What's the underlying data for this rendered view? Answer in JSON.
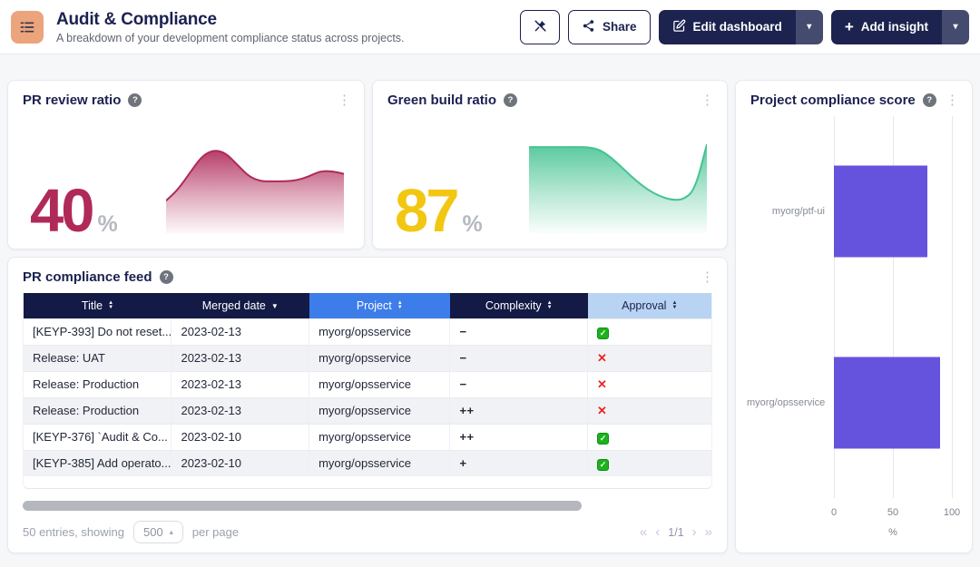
{
  "header": {
    "title": "Audit & Compliance",
    "subtitle": "A breakdown of your development compliance status across projects.",
    "share_label": "Share",
    "edit_label": "Edit dashboard",
    "add_label": "Add insight"
  },
  "icons": {
    "caret_down": "▾",
    "select_caret": "▴",
    "kebab": "⋮",
    "help": "?",
    "plus": "+",
    "sort_asc": "▲",
    "sort_desc": "▼",
    "check": "✓",
    "cross": "✕",
    "pag_first": "«",
    "pag_prev": "‹",
    "pag_next": "›",
    "pag_last": "»"
  },
  "colors": {
    "navy": "#1b2150",
    "crimson": "#b02a59",
    "yellow": "#f2c712",
    "green": "#45c392",
    "purple": "#6553dd",
    "header_blue": "#3d7de9",
    "header_light_blue": "#b9d4f2"
  },
  "cards": {
    "pr_review": {
      "title": "PR review ratio",
      "value": "40",
      "unit": "%"
    },
    "green_build": {
      "title": "Green build ratio",
      "value": "87",
      "unit": "%"
    },
    "score": {
      "title": "Project compliance score"
    },
    "feed": {
      "title": "PR compliance feed"
    }
  },
  "chart_data": [
    {
      "name": "pr-review-ratio",
      "type": "area",
      "title": "PR review ratio",
      "color": "#b02a59",
      "ylim": [
        0,
        100
      ],
      "displayed_value": 40,
      "unit": "%",
      "values": [
        36,
        48,
        66,
        84,
        91,
        88,
        75,
        62,
        57,
        57,
        57,
        58,
        62,
        68,
        68,
        65
      ]
    },
    {
      "name": "green-build-ratio",
      "type": "area",
      "title": "Green build ratio",
      "color": "#45c392",
      "ylim": [
        0,
        100
      ],
      "displayed_value": 87,
      "unit": "%",
      "values": [
        94,
        94,
        94,
        94,
        94,
        94,
        91,
        82,
        70,
        58,
        48,
        41,
        37,
        37,
        48,
        97
      ]
    },
    {
      "name": "project-compliance-score",
      "type": "bar",
      "title": "Project compliance score",
      "color": "#6553dd",
      "xlim": [
        0,
        100
      ],
      "xlabel": "%",
      "categories": [
        "myorg/ptf-ui",
        "myorg/opsservice"
      ],
      "values": [
        79,
        90
      ],
      "ticks": [
        "0",
        "50",
        "100"
      ]
    }
  ],
  "table": {
    "columns": [
      {
        "label": "Title",
        "sort": "both",
        "variant": "navy"
      },
      {
        "label": "Merged date",
        "sort": "desc",
        "variant": "navy"
      },
      {
        "label": "Project",
        "sort": "both",
        "variant": "blue"
      },
      {
        "label": "Complexity",
        "sort": "both",
        "variant": "navy"
      },
      {
        "label": "Approval",
        "sort": "both",
        "variant": "light"
      }
    ],
    "rows": [
      {
        "title": "[KEYP-393] Do not reset...",
        "date": "2023-02-13",
        "project": "myorg/opsservice",
        "complexity": "−",
        "approval": "pass"
      },
      {
        "title": "Release: UAT",
        "date": "2023-02-13",
        "project": "myorg/opsservice",
        "complexity": "−",
        "approval": "fail"
      },
      {
        "title": "Release: Production",
        "date": "2023-02-13",
        "project": "myorg/opsservice",
        "complexity": "−",
        "approval": "fail"
      },
      {
        "title": "Release: Production",
        "date": "2023-02-13",
        "project": "myorg/opsservice",
        "complexity": "++",
        "approval": "fail"
      },
      {
        "title": "[KEYP-376] `Audit & Co...",
        "date": "2023-02-10",
        "project": "myorg/opsservice",
        "complexity": "++",
        "approval": "pass"
      },
      {
        "title": "[KEYP-385] Add operato...",
        "date": "2023-02-10",
        "project": "myorg/opsservice",
        "complexity": "+",
        "approval": "pass"
      }
    ]
  },
  "footer": {
    "entries_text": "50 entries, showing",
    "page_size": "500",
    "per_page_text": "per page",
    "page_indicator": "1/1"
  }
}
